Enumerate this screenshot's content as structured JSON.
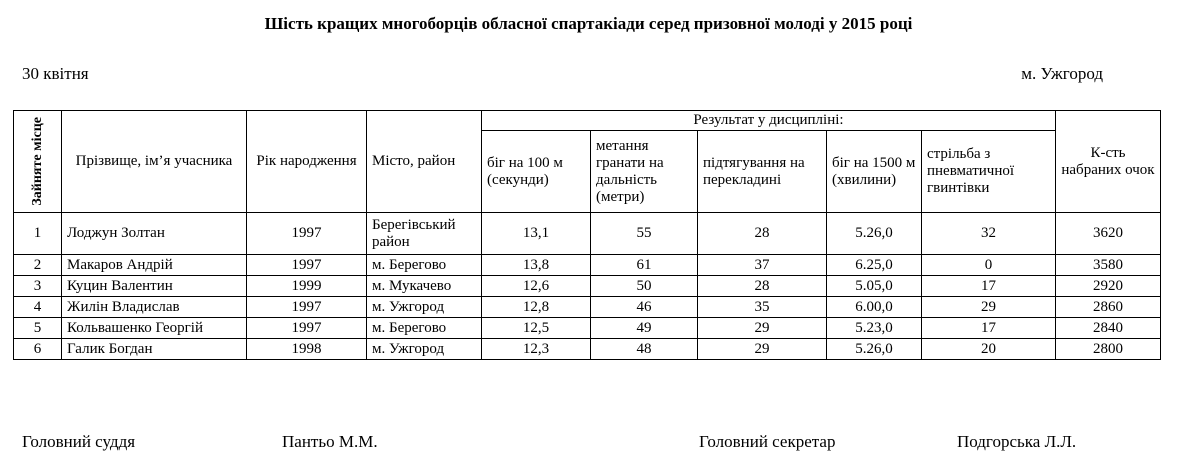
{
  "header": {
    "title": "Шість кращих многоборців обласної спартакіади серед призовної молоді у 2015 році",
    "date": "30 квітня",
    "place": "м. Ужгород"
  },
  "table": {
    "columns": {
      "place": "Зайняте місце",
      "name": "Прізвище, ім’я учасника",
      "year": "Рік народження",
      "city": "Місто, район",
      "results": "Результат у дисципліні:",
      "disciplines": [
        "біг на 100 м (секунди)",
        "метання гранати на дальність (метри)",
        "підтягування на перекладині",
        "біг на 1500 м (хвилини)",
        "стрільба з пневматичної гвинтівки"
      ],
      "points": "К-сть набраних очок"
    },
    "rows": [
      [
        "1",
        "Лоджун Золтан",
        "1997",
        "Берегівський район",
        "13,1",
        "55",
        "28",
        "5.26,0",
        "32",
        "3620"
      ],
      [
        "2",
        "Макаров Андрій",
        "1997",
        "м. Берегово",
        "13,8",
        "61",
        "37",
        "6.25,0",
        "0",
        "3580"
      ],
      [
        "3",
        "Куцин Валентин",
        "1999",
        "м. Мукачево",
        "12,6",
        "50",
        "28",
        "5.05,0",
        "17",
        "2920"
      ],
      [
        "4",
        "Жилін Владислав",
        "1997",
        "м. Ужгород",
        "12,8",
        "46",
        "35",
        "6.00,0",
        "29",
        "2860"
      ],
      [
        "5",
        "Кольвашенко Георгій",
        "1997",
        "м. Берегово",
        "12,5",
        "49",
        "29",
        "5.23,0",
        "17",
        "2840"
      ],
      [
        "6",
        "Галик Богдан",
        "1998",
        "м. Ужгород",
        "12,3",
        "48",
        "29",
        "5.26,0",
        "20",
        "2800"
      ]
    ]
  },
  "footer": {
    "judge_role": "Головний суддя",
    "judge_name": "Пантьо М.М.",
    "secretary_role": "Головний секретар",
    "secretary_name": "Подгорська Л.Л."
  }
}
